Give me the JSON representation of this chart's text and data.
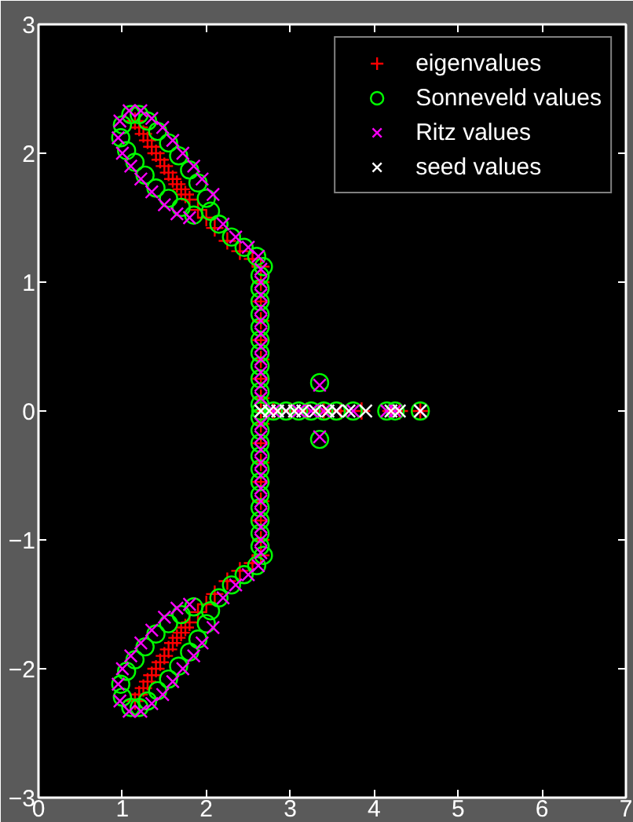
{
  "chart_data": {
    "type": "scatter",
    "xlim": [
      0,
      7
    ],
    "ylim": [
      -3,
      3
    ],
    "xticks": [
      0,
      1,
      2,
      3,
      4,
      5,
      6,
      7
    ],
    "yticks": [
      -3,
      -2,
      -1,
      0,
      1,
      2,
      3
    ],
    "grid": false,
    "legend": "top right",
    "series": [
      {
        "name": "eigenvalues",
        "color": "#ff0000",
        "marker": "cross",
        "x": [
          1.15,
          1.2,
          1.25,
          1.3,
          1.35,
          1.4,
          1.45,
          1.5,
          1.55,
          1.6,
          1.65,
          1.7,
          1.75,
          1.8,
          1.9,
          2.0,
          2.1,
          2.25,
          2.4,
          2.55,
          2.65,
          2.65,
          2.65,
          2.65,
          2.65,
          2.65,
          2.65,
          2.65,
          2.65,
          2.8,
          3.0,
          3.2,
          3.4,
          3.6,
          3.85,
          4.2,
          4.3,
          4.55,
          1.15,
          1.2,
          1.25,
          1.3,
          1.35,
          1.4,
          1.45,
          1.5,
          1.55,
          1.6,
          1.65,
          1.7,
          1.75,
          1.8,
          1.9,
          2.0,
          2.1,
          2.25,
          2.4,
          2.55,
          2.65,
          2.65,
          2.65,
          2.65,
          2.65,
          2.65,
          2.65,
          2.65
        ],
        "values": [
          2.25,
          2.2,
          2.15,
          2.1,
          2.05,
          2.0,
          1.95,
          1.9,
          1.85,
          1.8,
          1.76,
          1.72,
          1.68,
          1.64,
          1.56,
          1.5,
          1.42,
          1.32,
          1.24,
          1.18,
          1.12,
          1.0,
          0.85,
          0.7,
          0.55,
          0.4,
          0.25,
          0.1,
          0,
          0,
          0,
          0,
          0,
          0,
          0,
          0,
          0,
          0,
          -2.25,
          -2.2,
          -2.15,
          -2.1,
          -2.05,
          -2.0,
          -1.95,
          -1.9,
          -1.85,
          -1.8,
          -1.76,
          -1.72,
          -1.68,
          -1.64,
          -1.56,
          -1.5,
          -1.42,
          -1.32,
          -1.24,
          -1.18,
          -1.12,
          -1.0,
          -0.85,
          -0.7,
          -0.55,
          -0.4,
          -0.25,
          -0.1
        ]
      },
      {
        "name": "Sonneveld values",
        "color": "#00ff00",
        "marker": "circle",
        "x": [
          1.1,
          1.0,
          0.98,
          1.05,
          1.15,
          1.27,
          1.4,
          1.55,
          1.7,
          1.85,
          1.2,
          1.3,
          1.42,
          1.55,
          1.67,
          1.8,
          1.9,
          2.0,
          2.05,
          2.15,
          2.3,
          2.45,
          2.6,
          2.68,
          2.64,
          2.64,
          2.64,
          2.64,
          2.64,
          2.64,
          2.64,
          2.64,
          2.64,
          2.64,
          2.64,
          2.65,
          2.8,
          2.95,
          3.1,
          3.25,
          3.4,
          3.55,
          3.75,
          4.15,
          4.25,
          4.55,
          3.35,
          3.35,
          1.1,
          1.0,
          0.98,
          1.05,
          1.15,
          1.27,
          1.4,
          1.55,
          1.7,
          1.85,
          1.2,
          1.3,
          1.42,
          1.55,
          1.67,
          1.8,
          1.9,
          2.0,
          2.05,
          2.15,
          2.3,
          2.45,
          2.6,
          2.68,
          2.64,
          2.64,
          2.64,
          2.64,
          2.64,
          2.64,
          2.64,
          2.64,
          2.64,
          2.64,
          2.64
        ],
        "values": [
          2.3,
          2.22,
          2.12,
          2.02,
          1.93,
          1.83,
          1.73,
          1.65,
          1.58,
          1.52,
          2.3,
          2.25,
          2.17,
          2.08,
          1.98,
          1.87,
          1.77,
          1.65,
          1.55,
          1.45,
          1.35,
          1.27,
          1.2,
          1.12,
          1.05,
          0.95,
          0.85,
          0.75,
          0.65,
          0.55,
          0.45,
          0.35,
          0.25,
          0.15,
          0.05,
          0,
          0,
          0,
          0,
          0,
          0,
          0,
          0,
          0,
          0,
          0,
          0.22,
          -0.22,
          -2.3,
          -2.22,
          -2.12,
          -2.02,
          -1.93,
          -1.83,
          -1.73,
          -1.65,
          -1.58,
          -1.52,
          -2.3,
          -2.25,
          -2.17,
          -2.08,
          -1.98,
          -1.87,
          -1.77,
          -1.65,
          -1.55,
          -1.45,
          -1.35,
          -1.27,
          -1.2,
          -1.12,
          -1.05,
          -0.95,
          -0.85,
          -0.75,
          -0.65,
          -0.55,
          -0.45,
          -0.35,
          -0.25,
          -0.15,
          -0.05
        ]
      },
      {
        "name": "Ritz values",
        "color": "#ff00ff",
        "marker": "x",
        "x": [
          1.08,
          0.97,
          0.95,
          1.0,
          1.1,
          1.22,
          1.35,
          1.5,
          1.65,
          1.8,
          1.22,
          1.35,
          1.48,
          1.6,
          1.72,
          1.85,
          1.95,
          2.08,
          2.2,
          2.35,
          2.5,
          2.62,
          2.65,
          2.65,
          2.65,
          2.65,
          2.65,
          2.65,
          2.65,
          2.65,
          2.65,
          2.65,
          2.65,
          2.65,
          2.8,
          2.95,
          3.1,
          3.25,
          3.4,
          3.55,
          3.75,
          4.15,
          4.25,
          4.55,
          3.35,
          3.35,
          1.08,
          0.97,
          0.95,
          1.0,
          1.1,
          1.22,
          1.35,
          1.5,
          1.65,
          1.8,
          1.22,
          1.35,
          1.48,
          1.6,
          1.72,
          1.85,
          1.95,
          2.08,
          2.2,
          2.35,
          2.5,
          2.62,
          2.65,
          2.65,
          2.65,
          2.65,
          2.65,
          2.65,
          2.65,
          2.65,
          2.65,
          2.65,
          2.65
        ],
        "values": [
          2.33,
          2.25,
          2.12,
          2.0,
          1.9,
          1.8,
          1.7,
          1.6,
          1.53,
          1.5,
          2.33,
          2.27,
          2.2,
          2.1,
          2.0,
          1.9,
          1.8,
          1.68,
          1.45,
          1.35,
          1.27,
          1.2,
          1.1,
          1.0,
          0.9,
          0.8,
          0.7,
          0.6,
          0.5,
          0.4,
          0.3,
          0.2,
          0.1,
          0,
          0,
          0,
          0,
          0,
          0,
          0,
          0,
          0,
          0,
          0,
          0.2,
          -0.2,
          -2.33,
          -2.25,
          -2.12,
          -2.0,
          -1.9,
          -1.8,
          -1.7,
          -1.6,
          -1.53,
          -1.5,
          -2.33,
          -2.27,
          -2.2,
          -2.1,
          -2.0,
          -1.9,
          -1.8,
          -1.68,
          -1.45,
          -1.35,
          -1.27,
          -1.2,
          -1.1,
          -1.0,
          -0.9,
          -0.8,
          -0.7,
          -0.6,
          -0.5,
          -0.4,
          -0.3,
          -0.2,
          -0.1
        ]
      },
      {
        "name": "seed values",
        "color": "#ffffff",
        "marker": "x",
        "x": [
          2.65,
          2.75,
          2.85,
          2.95,
          3.05,
          3.15,
          3.3,
          3.45,
          3.55,
          3.7,
          3.9,
          4.2,
          4.3,
          4.55
        ],
        "values": [
          0,
          0,
          0,
          0,
          0,
          0,
          0,
          0,
          0,
          0,
          0,
          0,
          0,
          0
        ]
      }
    ]
  }
}
